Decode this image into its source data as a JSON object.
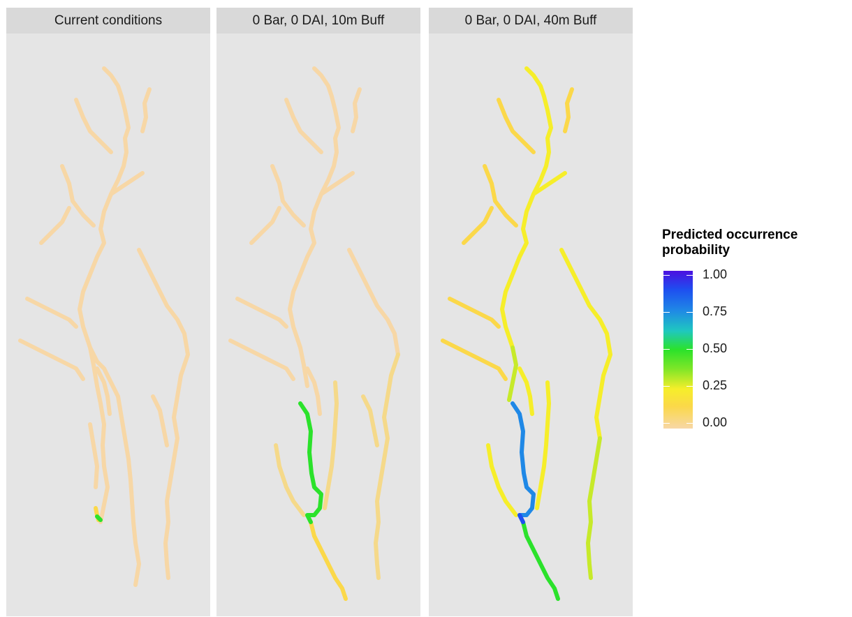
{
  "panels": [
    {
      "title": "Current conditions"
    },
    {
      "title": "0 Bar, 0 DAI, 10m Buff"
    },
    {
      "title": "0 Bar, 0 DAI, 40m Buff"
    }
  ],
  "legend": {
    "title_line1": "Predicted occurrence",
    "title_line2": "probability",
    "ticks": [
      "1.00",
      "0.75",
      "0.50",
      "0.25",
      "0.00"
    ]
  },
  "colors": {
    "panel_bg": "#e5e5e5",
    "strip_bg": "#d9d9d9",
    "p000": "#f7d7a6",
    "p020": "#fbd84a",
    "p025": "#f6ee2a",
    "p045": "#7de628",
    "p050": "#2be22b",
    "p070": "#1f88e6",
    "p085": "#1e4ff0",
    "p100": "#4b10e0"
  }
}
